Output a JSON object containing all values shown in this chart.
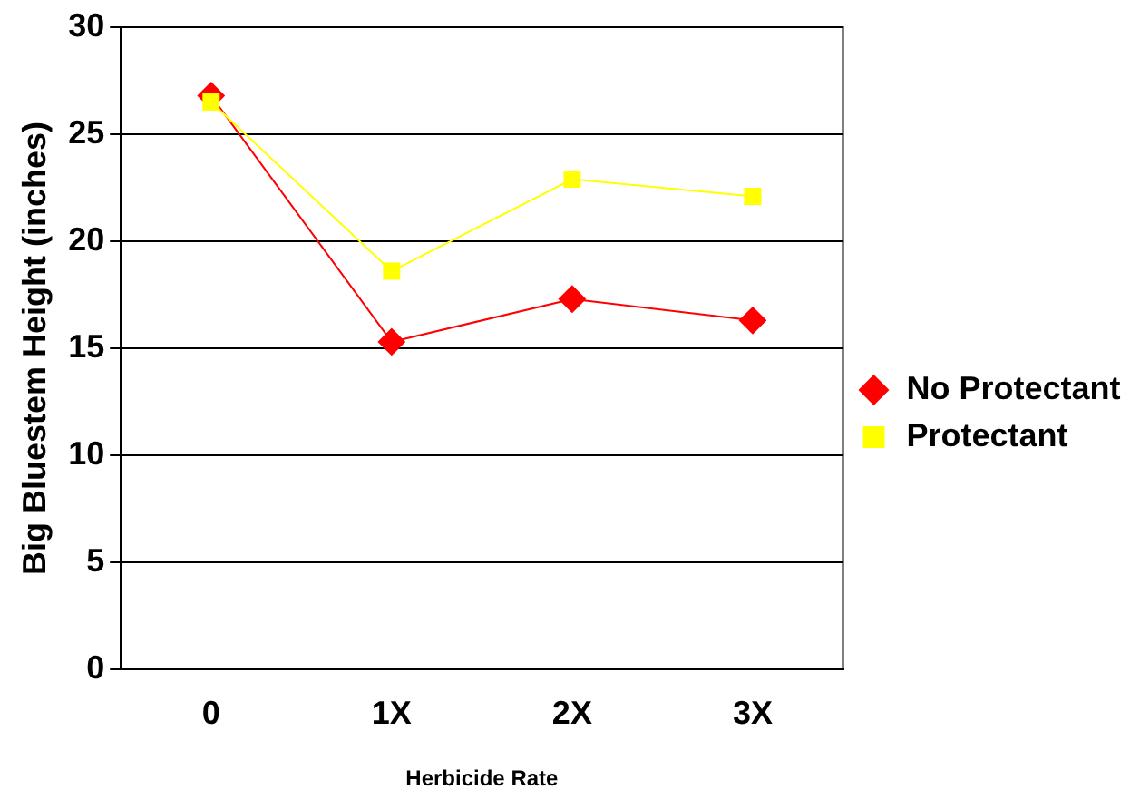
{
  "chart_data": {
    "type": "line",
    "xlabel": "Herbicide Rate",
    "ylabel": "Big Bluestem Height (inches)",
    "categories": [
      "0",
      "1X",
      "2X",
      "3X"
    ],
    "series": [
      {
        "name": "No Protectant",
        "color": "#ff0000",
        "marker": "diamond",
        "values": [
          26.8,
          15.3,
          17.3,
          16.3
        ]
      },
      {
        "name": "Protectant",
        "color": "#ffff00",
        "marker": "square",
        "values": [
          26.5,
          18.6,
          22.9,
          22.1
        ]
      }
    ],
    "ylim": [
      0,
      30
    ],
    "yticks": [
      0,
      5,
      10,
      15,
      20,
      25,
      30
    ],
    "grid": "y",
    "legend": "right",
    "line_style": "solid"
  }
}
